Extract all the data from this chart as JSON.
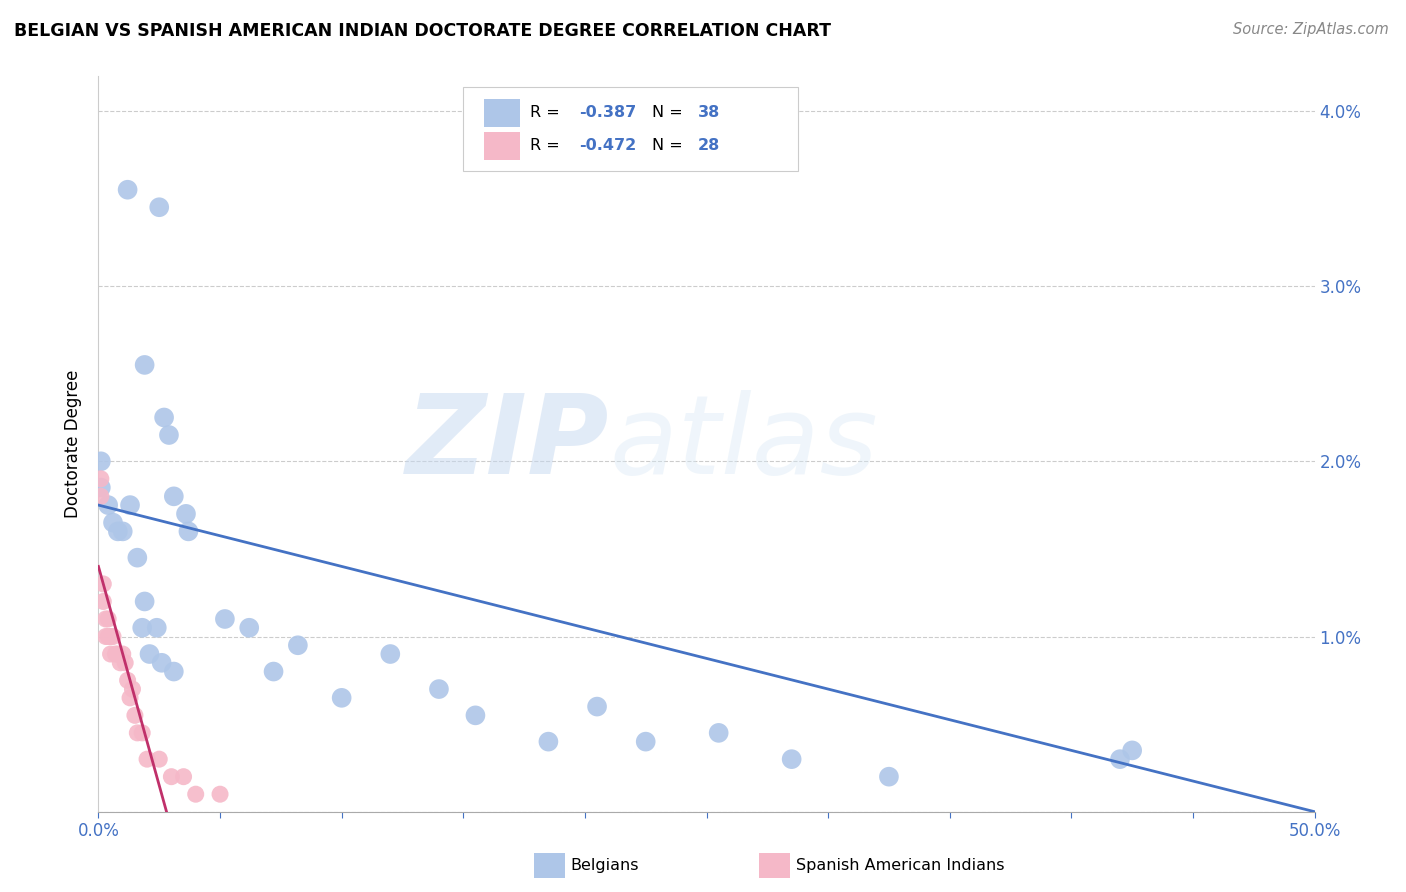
{
  "title": "BELGIAN VS SPANISH AMERICAN INDIAN DOCTORATE DEGREE CORRELATION CHART",
  "source": "Source: ZipAtlas.com",
  "ylabel": "Doctorate Degree",
  "xlim": [
    0.0,
    0.5
  ],
  "ylim": [
    0.0,
    0.042
  ],
  "yticks": [
    0.0,
    0.01,
    0.02,
    0.03,
    0.04
  ],
  "ytick_labels": [
    "",
    "1.0%",
    "2.0%",
    "3.0%",
    "4.0%"
  ],
  "xticks": [
    0.0,
    0.05,
    0.1,
    0.15,
    0.2,
    0.25,
    0.3,
    0.35,
    0.4,
    0.45,
    0.5
  ],
  "xtick_labels": [
    "0.0%",
    "",
    "",
    "",
    "",
    "",
    "",
    "",
    "",
    "",
    "50.0%"
  ],
  "belgian_color": "#aec6e8",
  "spanish_color": "#f5b8c8",
  "belgian_line_color": "#4472c4",
  "spanish_line_color": "#c0306a",
  "R_belgian": -0.387,
  "N_belgian": 38,
  "R_spanish": -0.472,
  "N_spanish": 28,
  "watermark_zip": "ZIP",
  "watermark_atlas": "atlas",
  "belgians_x": [
    0.001,
    0.012,
    0.025,
    0.019,
    0.027,
    0.029,
    0.031,
    0.036,
    0.037,
    0.001,
    0.004,
    0.006,
    0.008,
    0.01,
    0.013,
    0.016,
    0.018,
    0.019,
    0.021,
    0.024,
    0.026,
    0.031,
    0.052,
    0.062,
    0.072,
    0.082,
    0.1,
    0.12,
    0.14,
    0.155,
    0.185,
    0.205,
    0.225,
    0.255,
    0.285,
    0.325,
    0.42,
    0.425
  ],
  "belgians_y": [
    0.02,
    0.0355,
    0.0345,
    0.0255,
    0.0225,
    0.0215,
    0.018,
    0.017,
    0.016,
    0.0185,
    0.0175,
    0.0165,
    0.016,
    0.016,
    0.0175,
    0.0145,
    0.0105,
    0.012,
    0.009,
    0.0105,
    0.0085,
    0.008,
    0.011,
    0.0105,
    0.008,
    0.0095,
    0.0065,
    0.009,
    0.007,
    0.0055,
    0.004,
    0.006,
    0.004,
    0.0045,
    0.003,
    0.002,
    0.003,
    0.0035
  ],
  "spanish_x": [
    0.001,
    0.001,
    0.002,
    0.002,
    0.003,
    0.003,
    0.004,
    0.004,
    0.005,
    0.005,
    0.006,
    0.007,
    0.008,
    0.009,
    0.01,
    0.011,
    0.012,
    0.013,
    0.014,
    0.015,
    0.016,
    0.018,
    0.02,
    0.025,
    0.03,
    0.035,
    0.04,
    0.05
  ],
  "spanish_y": [
    0.019,
    0.018,
    0.013,
    0.012,
    0.011,
    0.01,
    0.011,
    0.01,
    0.01,
    0.009,
    0.01,
    0.009,
    0.009,
    0.0085,
    0.009,
    0.0085,
    0.0075,
    0.0065,
    0.007,
    0.0055,
    0.0045,
    0.0045,
    0.003,
    0.003,
    0.002,
    0.002,
    0.001,
    0.001
  ],
  "belgian_trendline_x": [
    0.0,
    0.5
  ],
  "belgian_trendline_y": [
    0.0175,
    0.0
  ],
  "spanish_trendline_x": [
    0.0,
    0.028
  ],
  "spanish_trendline_y": [
    0.014,
    0.0
  ]
}
